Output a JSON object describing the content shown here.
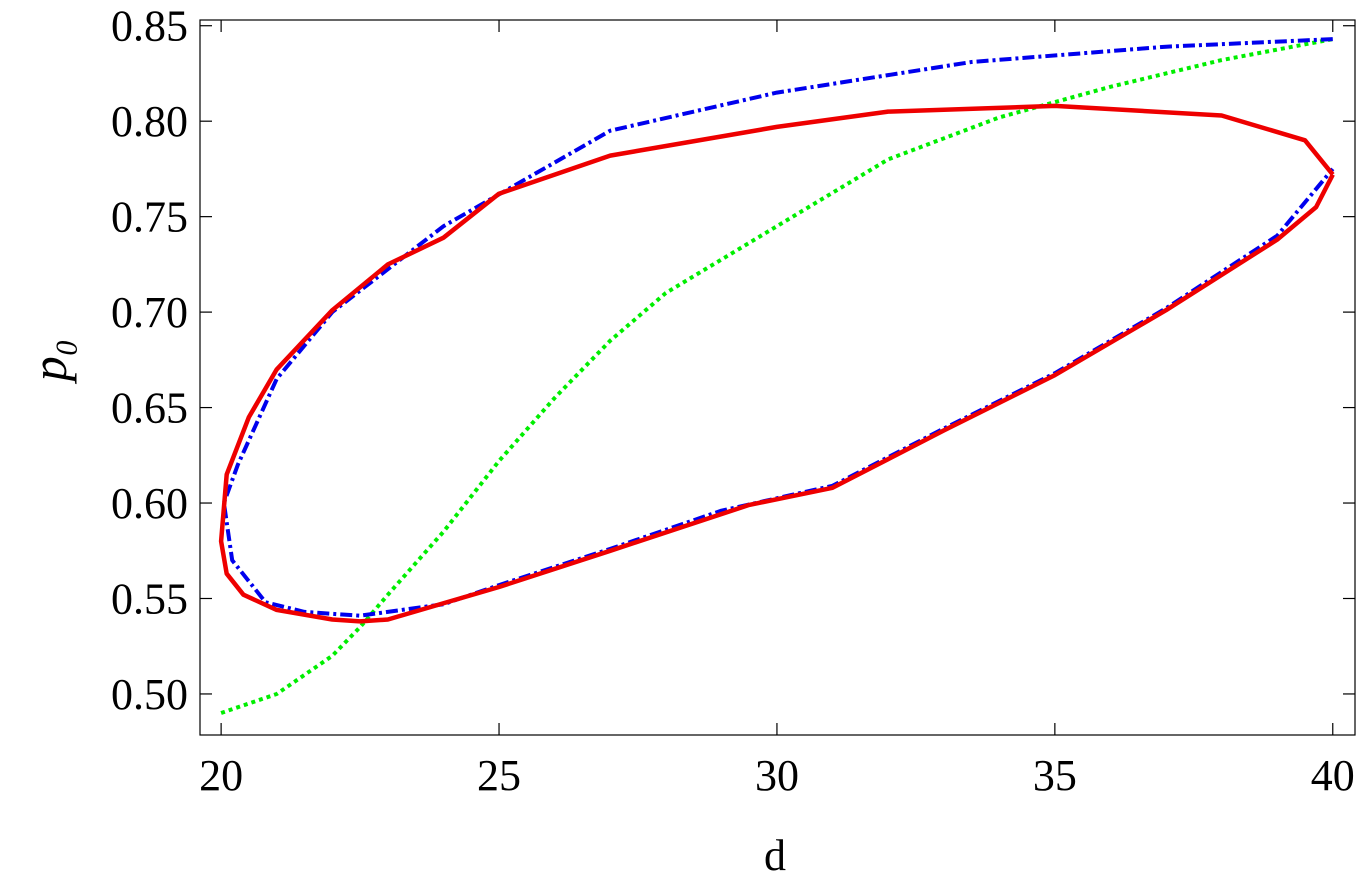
{
  "chart_data": {
    "type": "line",
    "xlabel": "d",
    "ylabel": "p₀",
    "xlim": [
      19.62,
      40.4
    ],
    "ylim": [
      0.4785,
      0.853
    ],
    "xticks": [
      20,
      25,
      30,
      35,
      40
    ],
    "yticks": [
      {
        "value": 0.5,
        "label": "0.50"
      },
      {
        "value": 0.55,
        "label": "0.55"
      },
      {
        "value": 0.6,
        "label": "0.60"
      },
      {
        "value": 0.65,
        "label": "0.65"
      },
      {
        "value": 0.7,
        "label": "0.70"
      },
      {
        "value": 0.75,
        "label": "0.75"
      },
      {
        "value": 0.8,
        "label": "0.80"
      },
      {
        "value": 0.85,
        "label": "0.85"
      }
    ],
    "series": [
      {
        "color": "#00ee00",
        "style": "dotted",
        "x": [
          20,
          21,
          22,
          22.5,
          23,
          24,
          25,
          26,
          27,
          28,
          30,
          32,
          34,
          35,
          36,
          38,
          40
        ],
        "values": [
          0.49,
          0.5,
          0.52,
          0.535,
          0.552,
          0.585,
          0.622,
          0.655,
          0.685,
          0.71,
          0.745,
          0.78,
          0.802,
          0.81,
          0.818,
          0.832,
          0.843
        ]
      },
      {
        "color": "#0000ee",
        "style": "dashdot",
        "x": [
          40,
          37,
          33.5,
          30,
          27,
          24,
          22,
          21,
          20.3,
          20.05,
          20.2,
          20.8,
          21.5,
          22.5,
          24,
          25,
          27,
          29,
          31,
          33,
          35,
          37,
          39,
          40
        ],
        "values": [
          0.843,
          0.839,
          0.831,
          0.815,
          0.795,
          0.745,
          0.7,
          0.665,
          0.62,
          0.6,
          0.57,
          0.548,
          0.543,
          0.541,
          0.547,
          0.557,
          0.576,
          0.596,
          0.609,
          0.639,
          0.668,
          0.702,
          0.74,
          0.775
        ]
      },
      {
        "color": "#ee0000",
        "style": "solid",
        "x": [
          40,
          39.5,
          38,
          35,
          32,
          30,
          27,
          25,
          24,
          23,
          22,
          21,
          20.5,
          20.1,
          20,
          20.1,
          20.4,
          21,
          22,
          22.5,
          23,
          25,
          27,
          29.5,
          31,
          33,
          35,
          37,
          39,
          39.7,
          40
        ],
        "values": [
          0.772,
          0.79,
          0.803,
          0.808,
          0.805,
          0.797,
          0.782,
          0.762,
          0.739,
          0.725,
          0.701,
          0.67,
          0.645,
          0.615,
          0.58,
          0.563,
          0.552,
          0.544,
          0.539,
          0.538,
          0.539,
          0.556,
          0.575,
          0.599,
          0.608,
          0.638,
          0.667,
          0.701,
          0.738,
          0.755,
          0.772
        ]
      }
    ]
  }
}
